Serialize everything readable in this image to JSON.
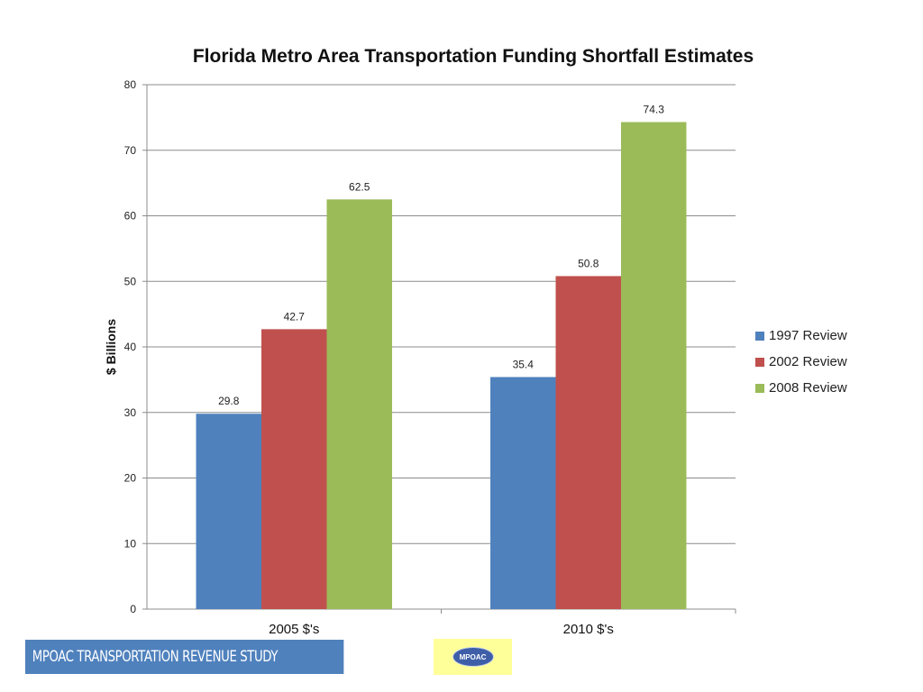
{
  "chart_data": {
    "type": "bar",
    "title": "Florida Metro Area Transportation Funding Shortfall Estimates",
    "xlabel": "",
    "ylabel": "$ Billions",
    "categories": [
      "2005 $'s",
      "2010 $'s"
    ],
    "series": [
      {
        "name": "1997 Review",
        "color": "#4f81bd",
        "values": [
          29.8,
          35.4
        ]
      },
      {
        "name": "2002 Review",
        "color": "#c0504d",
        "values": [
          42.7,
          50.8
        ]
      },
      {
        "name": "2008 Review",
        "color": "#9bbb59",
        "values": [
          62.5,
          74.3
        ]
      }
    ],
    "ylim": [
      0,
      80
    ],
    "yticks": [
      0,
      10,
      20,
      30,
      40,
      50,
      60,
      70,
      80
    ],
    "grid": true,
    "legend_position": "right",
    "data_labels": true
  },
  "footer": {
    "banner_text": "MPOAC  TRANSPORTATION REVENUE STUDY",
    "banner_color": "#4f81bd",
    "logo_box_color": "#ffff99",
    "logo_text": "MPOAC"
  }
}
